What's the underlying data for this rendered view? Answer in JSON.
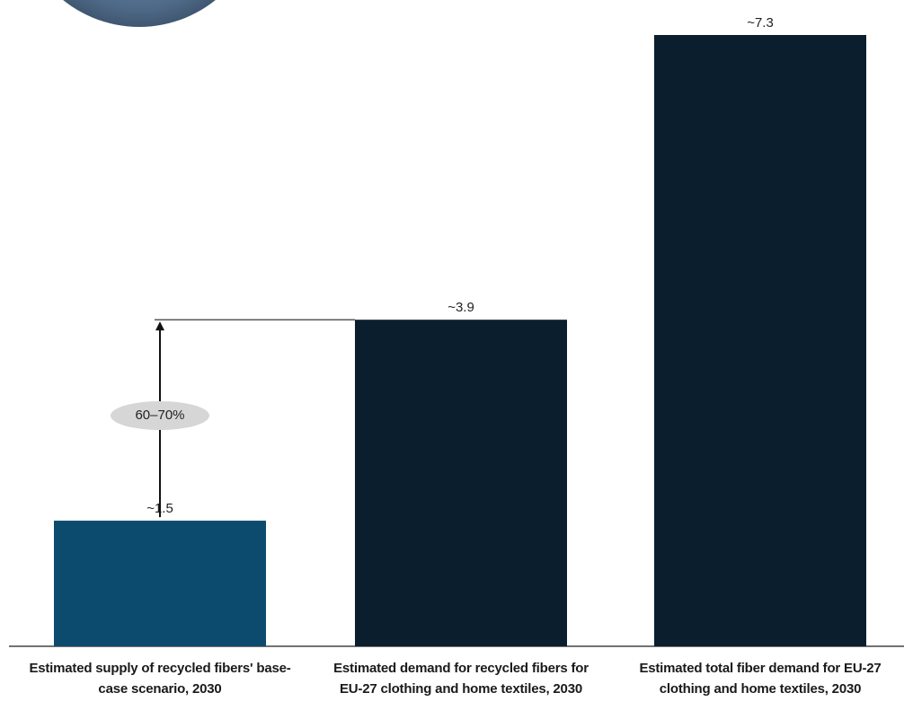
{
  "chart_data": {
    "type": "bar",
    "categories": [
      "Estimated supply of recycled fibers' base-case scenario, 2030",
      "Estimated demand for recycled fibers for EU-27 clothing and home textiles, 2030",
      "Estimated total fiber demand for EU-27 clothing and home textiles, 2030"
    ],
    "values": [
      1.5,
      3.9,
      7.3
    ],
    "value_labels": [
      "~1.5",
      "~3.9",
      "~7.3"
    ],
    "colors": [
      "#0c4a6e",
      "#0a1e2e",
      "#0a1e2e"
    ],
    "annotation": "60–70%"
  }
}
